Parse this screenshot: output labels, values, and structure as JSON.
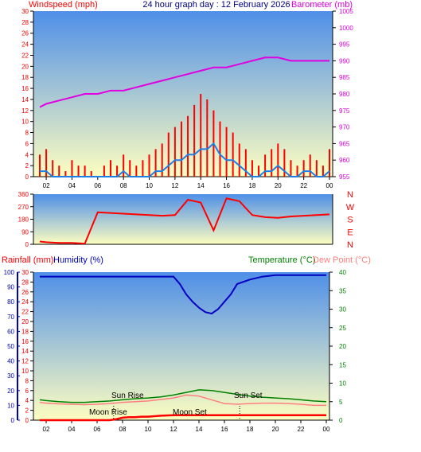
{
  "header": {
    "windspeed_label": "Windspeed (mph)",
    "title": "24 hour graph day : 12 February 2026",
    "barometer_label": "Barometer (mb)"
  },
  "mid_header": {
    "rainfall_label": "Rainfall (mm)",
    "humidity_label": "Humidity (%)",
    "temperature_label": "Temperature (°C)",
    "dewpoint_label": "Dew Point (°C)"
  },
  "annotations": {
    "moon_rise": "Moon Rise",
    "moon_set": "Moon Set",
    "sun_rise": "Sun Rise",
    "sun_set": "Sun Set"
  },
  "colors": {
    "wind": "#ff0000",
    "gust_avg": "#1e7fe6",
    "barometer": "#e000e0",
    "direction": "#ff0000",
    "humidity": "#0000c0",
    "temperature": "#008000",
    "dewpoint": "#ff8080",
    "rain": "#ff0000",
    "bg_top": "#4f8fe8",
    "bg_bottom": "#fefec0"
  },
  "chart_data": [
    {
      "type": "line",
      "title": "24 hour graph day : 12 February 2026",
      "xlabel": "",
      "x_ticks": [
        "02",
        "04",
        "06",
        "08",
        "10",
        "12",
        "14",
        "16",
        "18",
        "20",
        "22",
        "00"
      ],
      "ylabel": "Windspeed (mph)",
      "ylim": [
        0,
        30
      ],
      "y_ticks": [
        0,
        2,
        4,
        6,
        8,
        10,
        12,
        14,
        16,
        18,
        20,
        22,
        24,
        26,
        28,
        30
      ],
      "y2label": "Barometer (mb)",
      "y2lim": [
        955,
        1005
      ],
      "y2_ticks": [
        955,
        960,
        965,
        970,
        975,
        980,
        985,
        990,
        995,
        1000,
        1005
      ],
      "series": [
        {
          "name": "Windspeed (mph)",
          "axis": "left",
          "style": "gust",
          "x": [
            1.5,
            2,
            2.5,
            3,
            3.5,
            4,
            4.5,
            5,
            5.5,
            6,
            6.5,
            7,
            7.5,
            8,
            8.5,
            9,
            9.5,
            10,
            10.5,
            11,
            11.5,
            12,
            12.5,
            13,
            13.5,
            14,
            14.5,
            15,
            15.5,
            16,
            16.5,
            17,
            17.5,
            18,
            18.5,
            19,
            19.5,
            20,
            20.5,
            21,
            21.5,
            22,
            22.5,
            23,
            23.5,
            24
          ],
          "values": [
            4,
            5,
            3,
            2,
            1,
            3,
            2,
            2,
            1,
            0,
            2,
            3,
            2,
            4,
            3,
            2,
            3,
            4,
            5,
            6,
            8,
            9,
            10,
            11,
            13,
            15,
            14,
            12,
            10,
            9,
            8,
            6,
            5,
            3,
            2,
            4,
            5,
            6,
            5,
            3,
            2,
            3,
            4,
            3,
            2,
            5
          ]
        },
        {
          "name": "",
          "axis": "left",
          "style": "average",
          "x": [
            1.5,
            2,
            2.5,
            3,
            3.5,
            4,
            4.5,
            5,
            5.5,
            6,
            6.5,
            7,
            7.5,
            8,
            8.5,
            9,
            9.5,
            10,
            10.5,
            11,
            11.5,
            12,
            12.5,
            13,
            13.5,
            14,
            14.5,
            15,
            15.5,
            16,
            16.5,
            17,
            17.5,
            18,
            18.5,
            19,
            19.5,
            20,
            20.5,
            21,
            21.5,
            22,
            22.5,
            23,
            23.5,
            24
          ],
          "values": [
            1,
            1,
            0,
            0,
            0,
            0,
            0,
            0,
            0,
            0,
            0,
            0,
            0,
            1,
            0,
            0,
            0,
            0,
            1,
            1,
            2,
            3,
            3,
            4,
            4,
            5,
            5,
            6,
            4,
            3,
            3,
            2,
            1,
            0,
            0,
            1,
            1,
            2,
            1,
            0,
            0,
            1,
            1,
            0,
            0,
            1
          ]
        },
        {
          "name": "Barometer (mb)",
          "axis": "right",
          "x": [
            1.5,
            2,
            3,
            4,
            5,
            6,
            7,
            8,
            9,
            10,
            11,
            12,
            13,
            14,
            15,
            16,
            17,
            18,
            19,
            20,
            21,
            22,
            23,
            24
          ],
          "values": [
            976,
            977,
            978,
            979,
            980,
            980,
            981,
            981,
            982,
            983,
            984,
            985,
            986,
            987,
            988,
            988,
            989,
            990,
            991,
            991,
            990,
            990,
            990,
            990
          ]
        }
      ],
      "grid": false,
      "legend": "none"
    },
    {
      "type": "line",
      "title": "",
      "y_ticks": [
        0,
        90,
        180,
        270,
        360
      ],
      "ylim": [
        0,
        360
      ],
      "compass_labels": [
        "N",
        "W",
        "S",
        "E",
        "N"
      ],
      "series": [
        {
          "name": "",
          "x": [
            1.5,
            2,
            3,
            4,
            5,
            6,
            7,
            8,
            9,
            10,
            11,
            12,
            13,
            14,
            15,
            16,
            17,
            18,
            19,
            20,
            21,
            22,
            23,
            24
          ],
          "values": [
            20,
            15,
            10,
            10,
            5,
            230,
            225,
            220,
            215,
            210,
            205,
            210,
            320,
            300,
            100,
            330,
            310,
            210,
            195,
            190,
            200,
            205,
            210,
            215
          ]
        }
      ],
      "grid": false,
      "legend": "none"
    },
    {
      "type": "line",
      "title": "",
      "x_ticks": [
        "02",
        "04",
        "06",
        "08",
        "10",
        "12",
        "14",
        "16",
        "18",
        "20",
        "22",
        "00"
      ],
      "ylim": [
        0,
        30
      ],
      "y_ticks": [
        0,
        2,
        4,
        6,
        8,
        10,
        12,
        14,
        16,
        18,
        20,
        22,
        24,
        26,
        28,
        30
      ],
      "humidity_ticks": [
        0,
        10,
        20,
        30,
        40,
        50,
        60,
        70,
        80,
        90,
        100
      ],
      "ylim_temp": [
        0,
        40
      ],
      "temp_ticks": [
        0,
        5,
        10,
        15,
        20,
        25,
        30,
        35,
        40
      ],
      "series": [
        {
          "name": "Humidity (%)",
          "axis": "humidity",
          "x": [
            1.5,
            2,
            3,
            4,
            5,
            6,
            7,
            8,
            9,
            10,
            11,
            12,
            12.5,
            13,
            13.5,
            14,
            14.5,
            15,
            15.5,
            16,
            16.5,
            17,
            18,
            19,
            20,
            21,
            22,
            23,
            24
          ],
          "values": [
            97,
            97,
            97,
            97,
            97,
            97,
            97,
            97,
            97,
            97,
            97,
            97,
            92,
            85,
            80,
            76,
            73,
            72,
            75,
            80,
            85,
            92,
            95,
            97,
            98,
            98,
            98,
            98,
            98
          ]
        },
        {
          "name": "Temperature (°C)",
          "axis": "temperature",
          "x": [
            1.5,
            2,
            3,
            4,
            5,
            6,
            7,
            8,
            9,
            10,
            11,
            12,
            13,
            14,
            15,
            16,
            17,
            18,
            19,
            20,
            21,
            22,
            23,
            24
          ],
          "values": [
            5.5,
            5.3,
            5,
            4.8,
            4.8,
            5,
            5.2,
            5.5,
            5.8,
            6,
            6.3,
            6.8,
            7.5,
            8.2,
            8,
            7.5,
            7,
            6.5,
            6.2,
            6,
            5.8,
            5.5,
            5.2,
            5
          ]
        },
        {
          "name": "Dew Point (°C)",
          "axis": "temperature",
          "x": [
            1.5,
            2,
            3,
            4,
            5,
            6,
            7,
            8,
            9,
            10,
            11,
            12,
            13,
            14,
            15,
            16,
            17,
            18,
            19,
            20,
            21,
            22,
            23,
            24
          ],
          "values": [
            4.8,
            4.6,
            4.4,
            4.3,
            4.2,
            4.3,
            4.5,
            4.8,
            5,
            5.2,
            5.6,
            6,
            6.8,
            6.5,
            5.5,
            4.5,
            4.3,
            4.5,
            4.6,
            4.6,
            4.5,
            4.3,
            4,
            4
          ]
        },
        {
          "name": "Rainfall (mm)",
          "axis": "left",
          "x": [
            1.5,
            7,
            7.5,
            8,
            8.5,
            9,
            9.5,
            10,
            10.5,
            11,
            12,
            14,
            16,
            18,
            20,
            22,
            24
          ],
          "values": [
            0,
            0,
            0.2,
            0.5,
            0.6,
            0.6,
            0.7,
            0.7,
            0.8,
            0.9,
            1.0,
            1.0,
            1.0,
            1.0,
            1.0,
            1.0,
            1.0
          ]
        }
      ],
      "grid": false,
      "legend": "none"
    }
  ]
}
